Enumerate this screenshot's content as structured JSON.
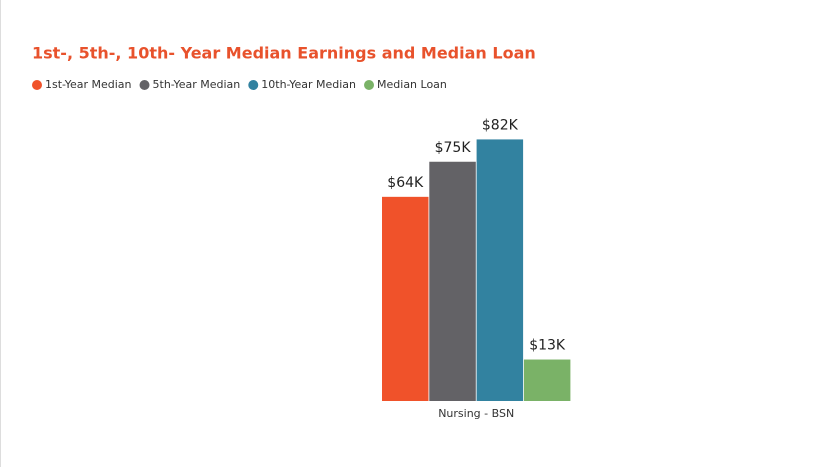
{
  "chart_data": {
    "type": "bar",
    "title": "1st-, 5th-, 10th- Year Median Earnings and Median Loan",
    "categories": [
      "Nursing - BSN"
    ],
    "series": [
      {
        "name": "1st-Year Median",
        "color": "#f0522a",
        "values": [
          64
        ],
        "value_labels": [
          "$64K"
        ]
      },
      {
        "name": "5th-Year Median",
        "color": "#636266",
        "values": [
          75
        ],
        "value_labels": [
          "$75K"
        ]
      },
      {
        "name": "10th-Year Median",
        "color": "#3282a0",
        "values": [
          82
        ],
        "value_labels": [
          "$82K"
        ]
      },
      {
        "name": "Median Loan",
        "color": "#7ab267",
        "values": [
          13
        ],
        "value_labels": [
          "$13K"
        ]
      }
    ]
  }
}
